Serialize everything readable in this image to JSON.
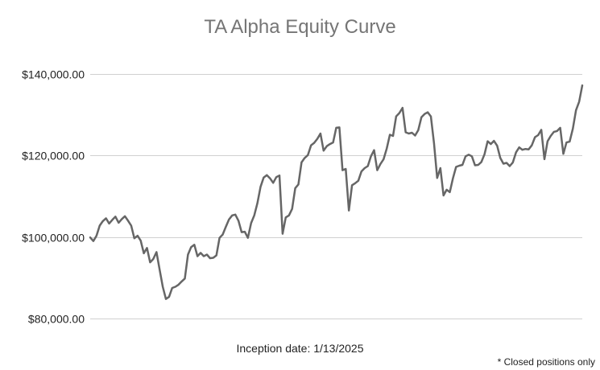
{
  "chart_data": {
    "type": "line",
    "title": "TA Alpha Equity Curve",
    "xlabel": "Inception date: 1/13/2025",
    "ylabel": "",
    "ylim": [
      80000,
      140000
    ],
    "yticks": [
      {
        "value": 80000,
        "label": "$80,000.00"
      },
      {
        "value": 100000,
        "label": "$100,000.00"
      },
      {
        "value": 120000,
        "label": "$120,000.00"
      },
      {
        "value": 140000,
        "label": "$140,000.00"
      }
    ],
    "grid": true,
    "legend": "none",
    "series": [
      {
        "color": "#666666",
        "values": [
          99900,
          99000,
          100300,
          102800,
          103900,
          104600,
          103300,
          104200,
          105000,
          103500,
          104400,
          105100,
          104000,
          102800,
          99700,
          100300,
          99100,
          96000,
          97300,
          93800,
          94600,
          96300,
          92000,
          87800,
          84800,
          85300,
          87500,
          87800,
          88300,
          89100,
          89800,
          95700,
          97500,
          98100,
          95300,
          96100,
          95300,
          95700,
          94800,
          94900,
          95500,
          99800,
          100600,
          102500,
          104300,
          105300,
          105500,
          104000,
          101200,
          101300,
          99800,
          103400,
          105300,
          108300,
          112300,
          114600,
          115200,
          114400,
          113300,
          114700,
          115100,
          100800,
          104800,
          105300,
          106900,
          112000,
          112900,
          118300,
          119400,
          120100,
          122500,
          123100,
          124100,
          125400,
          121200,
          122300,
          122800,
          123200,
          126800,
          126900,
          116400,
          116700,
          106500,
          112700,
          113200,
          113800,
          116100,
          116900,
          117400,
          119800,
          121300,
          116400,
          117900,
          119100,
          121700,
          125100,
          124800,
          129600,
          130400,
          131700,
          125700,
          125400,
          125600,
          124900,
          126200,
          129400,
          130200,
          130600,
          129600,
          123000,
          114500,
          116900,
          110200,
          111600,
          111000,
          114400,
          117200,
          117500,
          117700,
          119800,
          120200,
          119800,
          117600,
          117700,
          118400,
          120300,
          123500,
          122800,
          123600,
          122400,
          119400,
          118000,
          118200,
          117400,
          118300,
          120800,
          122000,
          121400,
          121600,
          121500,
          122500,
          124500,
          125000,
          126300,
          119100,
          123500,
          124800,
          125800,
          126000,
          126800,
          120400,
          123200,
          123400,
          126600,
          131100,
          133200,
          137200
        ]
      }
    ]
  },
  "footnote": "* Closed positions only"
}
